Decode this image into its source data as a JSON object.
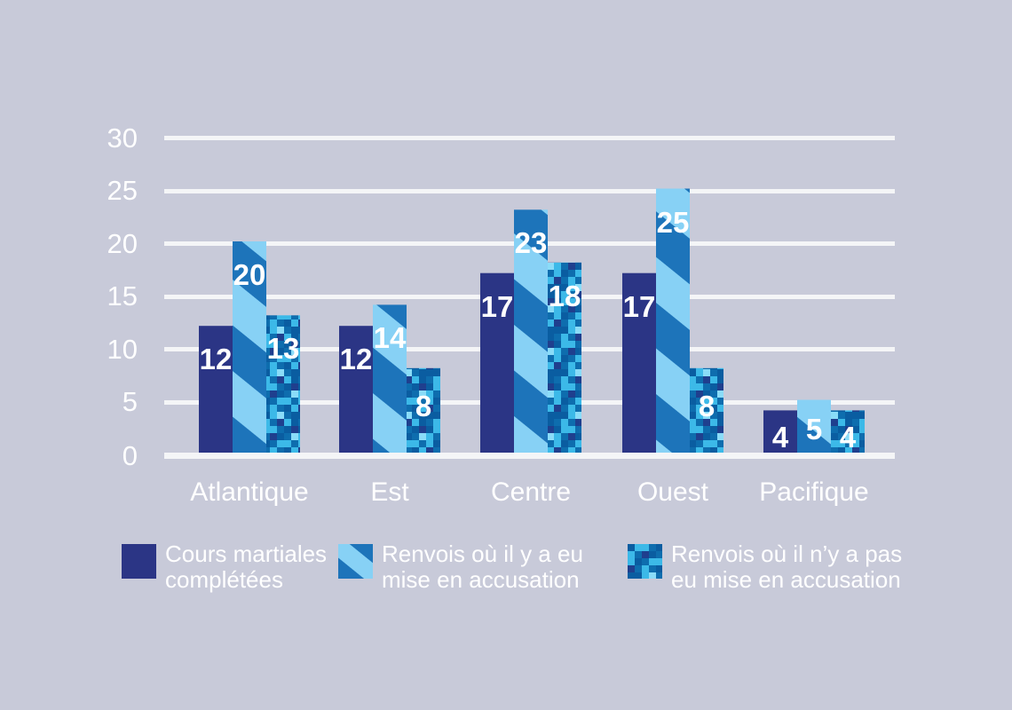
{
  "chart_data": {
    "type": "bar",
    "categories": [
      "Atlantique",
      "Est",
      "Centre",
      "Ouest",
      "Pacifique"
    ],
    "series": [
      {
        "name": "Cours martiales complétées",
        "legend_lines": [
          "Cours martiales",
          "complétées"
        ],
        "values": [
          12,
          12,
          17,
          17,
          4
        ],
        "style": "solid",
        "colors": [
          "#2b3585"
        ]
      },
      {
        "name": "Renvois où il y a eu mise en accusation",
        "legend_lines": [
          "Renvois où il y a eu",
          "mise en accusation"
        ],
        "values": [
          20,
          14,
          23,
          25,
          5
        ],
        "style": "diagonal-stripes",
        "colors": [
          "#1d74ba",
          "#87d1f5"
        ]
      },
      {
        "name": "Renvois où il n’y a pas eu mise en accusation",
        "legend_lines": [
          "Renvois où il n’y a pas",
          "eu mise en accusation"
        ],
        "values": [
          13,
          8,
          18,
          8,
          4
        ],
        "style": "digital-camo",
        "colors": [
          "#0e6dae",
          "#0a5da1",
          "#3cb9e8",
          "#1f3f8e",
          "#8adcf8"
        ]
      }
    ],
    "ylim": [
      0,
      30
    ],
    "yticks": [
      0,
      5,
      10,
      15,
      20,
      25,
      30
    ],
    "grid": "horizontal-white",
    "legend_position": "bottom",
    "background_color": "#c8cad9",
    "text_color": "#ffffff",
    "show_value_labels": true
  }
}
